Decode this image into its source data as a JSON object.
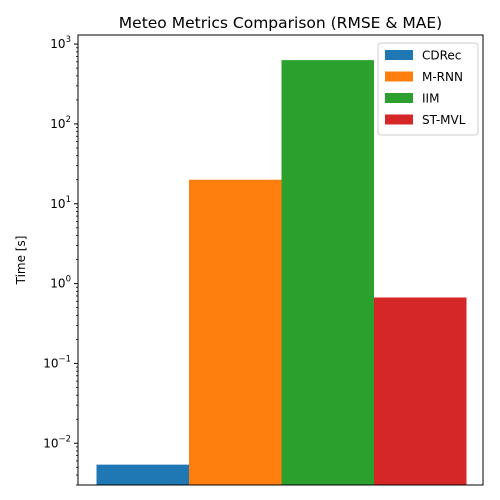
{
  "chart_data": {
    "type": "bar",
    "title": "Meteo Metrics Comparison (RMSE & MAE)",
    "xlabel": "",
    "ylabel": "Time [s]",
    "yscale": "log",
    "ylim": [
      0.003,
      1300
    ],
    "yticks": [
      {
        "value": 0.01,
        "base": "10",
        "exp": "−2"
      },
      {
        "value": 0.1,
        "base": "10",
        "exp": "−1"
      },
      {
        "value": 1,
        "base": "10",
        "exp": "0"
      },
      {
        "value": 10,
        "base": "10",
        "exp": "1"
      },
      {
        "value": 100,
        "base": "10",
        "exp": "2"
      },
      {
        "value": 1000,
        "base": "10",
        "exp": "3"
      }
    ],
    "grid": false,
    "legend_position": "top-right",
    "series": [
      {
        "name": "CDRec",
        "value": 0.0054,
        "color": "#1f77b4"
      },
      {
        "name": "M-RNN",
        "value": 20,
        "color": "#ff7f0e"
      },
      {
        "name": "IIM",
        "value": 630,
        "color": "#2ca02c"
      },
      {
        "name": "ST-MVL",
        "value": 0.67,
        "color": "#d62728"
      }
    ]
  }
}
